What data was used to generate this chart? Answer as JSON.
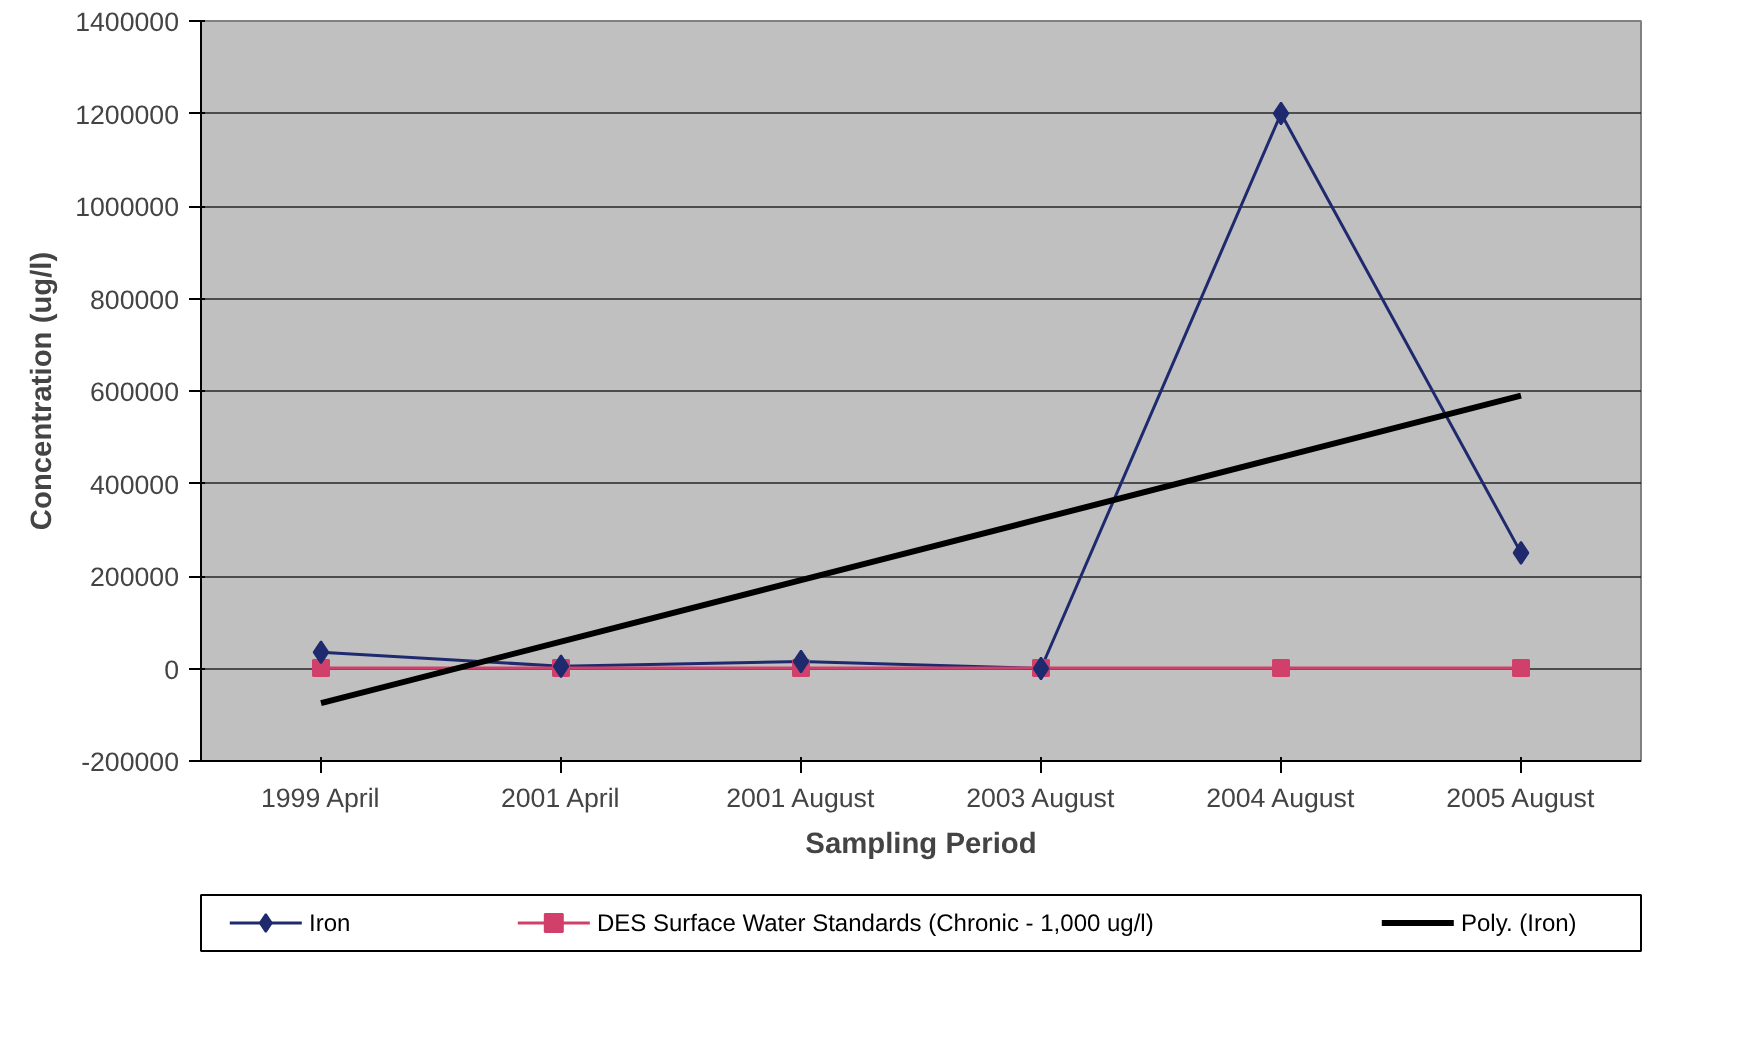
{
  "chart_data": {
    "type": "line",
    "xlabel": "Sampling Period",
    "ylabel": "Concentration (ug/l)",
    "categories": [
      "1999 April",
      "2001 April",
      "2001 August",
      "2003 August",
      "2004 August",
      "2005 August"
    ],
    "ylim": [
      -200000,
      1400000
    ],
    "yticks": [
      -200000,
      0,
      200000,
      400000,
      600000,
      800000,
      1000000,
      1200000,
      1400000
    ],
    "grid": "y",
    "legend": "bottom",
    "series": [
      {
        "name": "Iron",
        "color": "#1f2a6e",
        "marker": "diamond",
        "values": [
          35000,
          5000,
          15000,
          0,
          1200000,
          250000
        ]
      },
      {
        "name": "DES Surface Water Standards (Chronic - 1,000 ug/l)",
        "color": "#d0406a",
        "marker": "square",
        "values": [
          1000,
          1000,
          1000,
          1000,
          1000,
          1000
        ]
      },
      {
        "name": "Poly. (Iron)",
        "color": "#000000",
        "marker": "none",
        "values": [
          -75000,
          58000,
          191000,
          324000,
          457000,
          590000
        ]
      }
    ]
  }
}
